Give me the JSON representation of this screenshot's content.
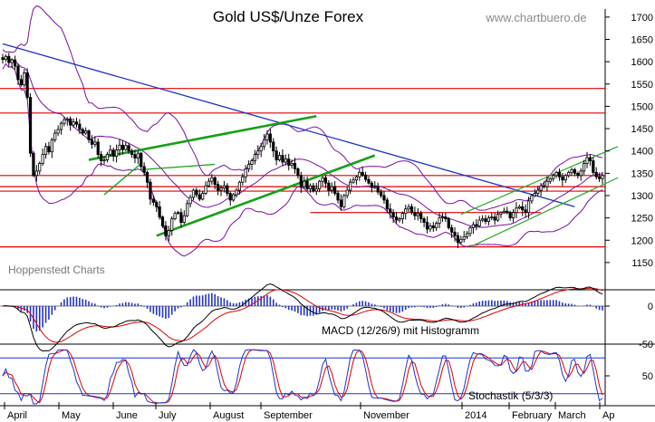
{
  "chart_data": [
    {
      "type": "candlestick",
      "title": "Gold US$/Unze Forex",
      "watermark": "www.chartbuero.de",
      "source_label": "Hoppenstedt Charts",
      "ylim": [
        1130,
        1720
      ],
      "y_ticks": [
        1150,
        1200,
        1250,
        1300,
        1350,
        1400,
        1450,
        1500,
        1550,
        1600,
        1650,
        1700
      ],
      "x_labels": [
        "April",
        "May",
        "June",
        "July",
        "August",
        "September",
        "November",
        "2014",
        "February",
        "March",
        "Ap"
      ],
      "x_label_index": [
        5,
        65,
        125,
        172,
        232,
        288,
        398,
        510,
        562,
        613,
        668
      ],
      "close": [
        1605,
        1612,
        1598,
        1604,
        1590,
        1560,
        1548,
        1575,
        1520,
        1395,
        1345,
        1355,
        1372,
        1392,
        1410,
        1398,
        1425,
        1440,
        1448,
        1462,
        1470,
        1472,
        1458,
        1465,
        1460,
        1448,
        1440,
        1445,
        1425,
        1415,
        1420,
        1392,
        1378,
        1380,
        1392,
        1402,
        1388,
        1402,
        1413,
        1403,
        1412,
        1400,
        1392,
        1384,
        1395,
        1365,
        1352,
        1330,
        1292,
        1285,
        1275,
        1252,
        1232,
        1210,
        1222,
        1248,
        1260,
        1262,
        1240,
        1255,
        1282,
        1296,
        1312,
        1302,
        1292,
        1305,
        1322,
        1332,
        1340,
        1325,
        1312,
        1317,
        1322,
        1305,
        1290,
        1302,
        1312,
        1330,
        1342,
        1360,
        1370,
        1378,
        1392,
        1400,
        1410,
        1425,
        1438,
        1420,
        1400,
        1380,
        1390,
        1375,
        1382,
        1368,
        1372,
        1360,
        1345,
        1320,
        1332,
        1315,
        1322,
        1310,
        1315,
        1332,
        1340,
        1328,
        1312,
        1320,
        1305,
        1290,
        1275,
        1300,
        1312,
        1330,
        1335,
        1342,
        1352,
        1346,
        1336,
        1328,
        1318,
        1320,
        1308,
        1300,
        1290,
        1270,
        1262,
        1252,
        1245,
        1248,
        1260,
        1270,
        1275,
        1262,
        1255,
        1260,
        1248,
        1240,
        1225,
        1232,
        1228,
        1238,
        1250,
        1252,
        1248,
        1228,
        1218,
        1210,
        1195,
        1202,
        1208,
        1215,
        1228,
        1235,
        1232,
        1245,
        1248,
        1242,
        1250,
        1252,
        1245,
        1258,
        1262,
        1265,
        1262,
        1250,
        1262,
        1272,
        1275,
        1268,
        1262,
        1288,
        1300,
        1305,
        1312,
        1322,
        1320,
        1332,
        1338,
        1345,
        1352,
        1342,
        1335,
        1345,
        1352,
        1358,
        1350,
        1345,
        1355,
        1372,
        1385,
        1378,
        1352,
        1342,
        1338,
        1345
      ]
    },
    {
      "type": "macd",
      "label": "MACD (12/26/9) mit Histogramm",
      "ylim": [
        -60,
        30
      ],
      "y_ticks": [
        0,
        -50
      ]
    },
    {
      "type": "stochastic",
      "label": "Stochastik (5/3/3)",
      "ylim": [
        0,
        100
      ],
      "y_ticks": [
        50
      ],
      "levels": [
        20,
        80
      ]
    }
  ],
  "overlays": {
    "resistance_lines": [
      1540,
      1485,
      1345,
      1320,
      1310,
      1262,
      1185
    ],
    "colors": {
      "candle": "#000000",
      "bollinger": "#7a0ea0",
      "trend_blue": "#1a33c8",
      "channel_green": "#17a017",
      "channel_thin": "#2aa82a",
      "horizontal_red": "#e00000",
      "macd_line": "#000000",
      "signal_line": "#e00000",
      "histogram": "#2233cc",
      "stoch_k": "#2233cc",
      "stoch_d": "#e00000"
    }
  }
}
